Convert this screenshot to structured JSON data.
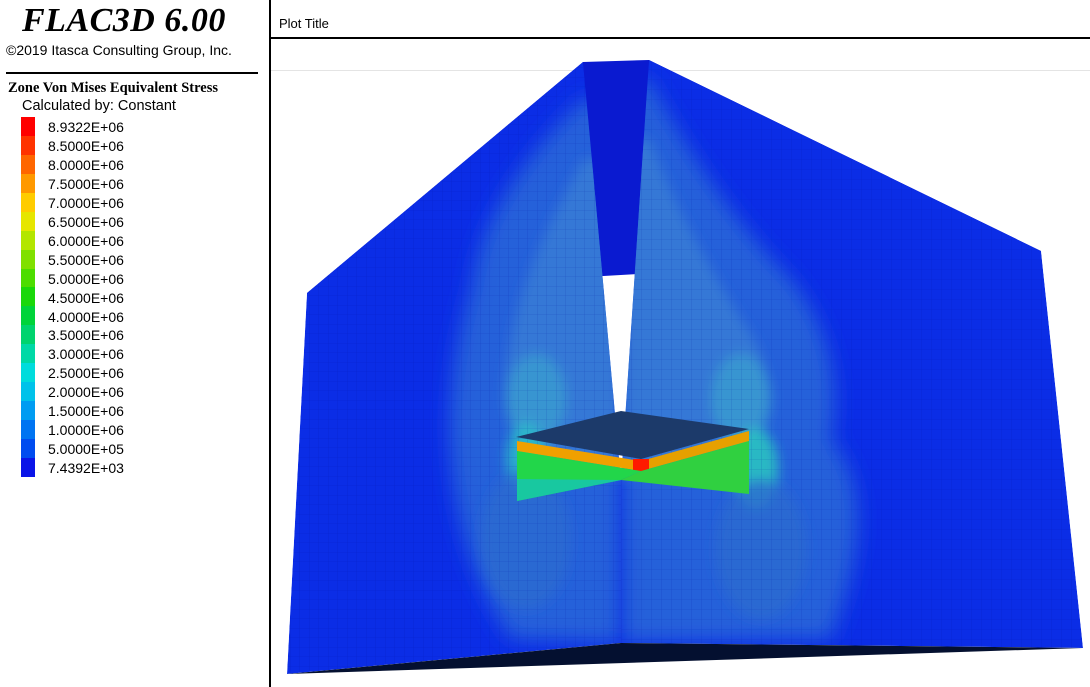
{
  "header": {
    "app_title": "FLAC3D 6.00",
    "copyright": "©2019 Itasca Consulting Group, Inc."
  },
  "legend": {
    "title": "Zone Von Mises Equivalent Stress",
    "calculated_by": "Calculated by: Constant",
    "entries": [
      {
        "label": "8.9322E+06",
        "color": "#ff0000"
      },
      {
        "label": "8.5000E+06",
        "color": "#ff3300"
      },
      {
        "label": "8.0000E+06",
        "color": "#ff6600"
      },
      {
        "label": "7.5000E+06",
        "color": "#ff9900"
      },
      {
        "label": "7.0000E+06",
        "color": "#ffcc00"
      },
      {
        "label": "6.5000E+06",
        "color": "#e6e600"
      },
      {
        "label": "6.0000E+06",
        "color": "#b3e600"
      },
      {
        "label": "5.5000E+06",
        "color": "#80e000"
      },
      {
        "label": "5.0000E+06",
        "color": "#4ddd00"
      },
      {
        "label": "4.5000E+06",
        "color": "#1ad80a"
      },
      {
        "label": "4.0000E+06",
        "color": "#00d43a"
      },
      {
        "label": "3.5000E+06",
        "color": "#00d46e"
      },
      {
        "label": "3.0000E+06",
        "color": "#00d9a6"
      },
      {
        "label": "2.5000E+06",
        "color": "#00dcdc"
      },
      {
        "label": "2.0000E+06",
        "color": "#00c2ea"
      },
      {
        "label": "1.5000E+06",
        "color": "#009cf2"
      },
      {
        "label": "1.0000E+06",
        "color": "#0074f2"
      },
      {
        "label": "5.0000E+05",
        "color": "#004cf0"
      },
      {
        "label": "7.4392E+03",
        "color": "#0a14e8"
      }
    ]
  },
  "plot": {
    "title": "Plot Title"
  }
}
